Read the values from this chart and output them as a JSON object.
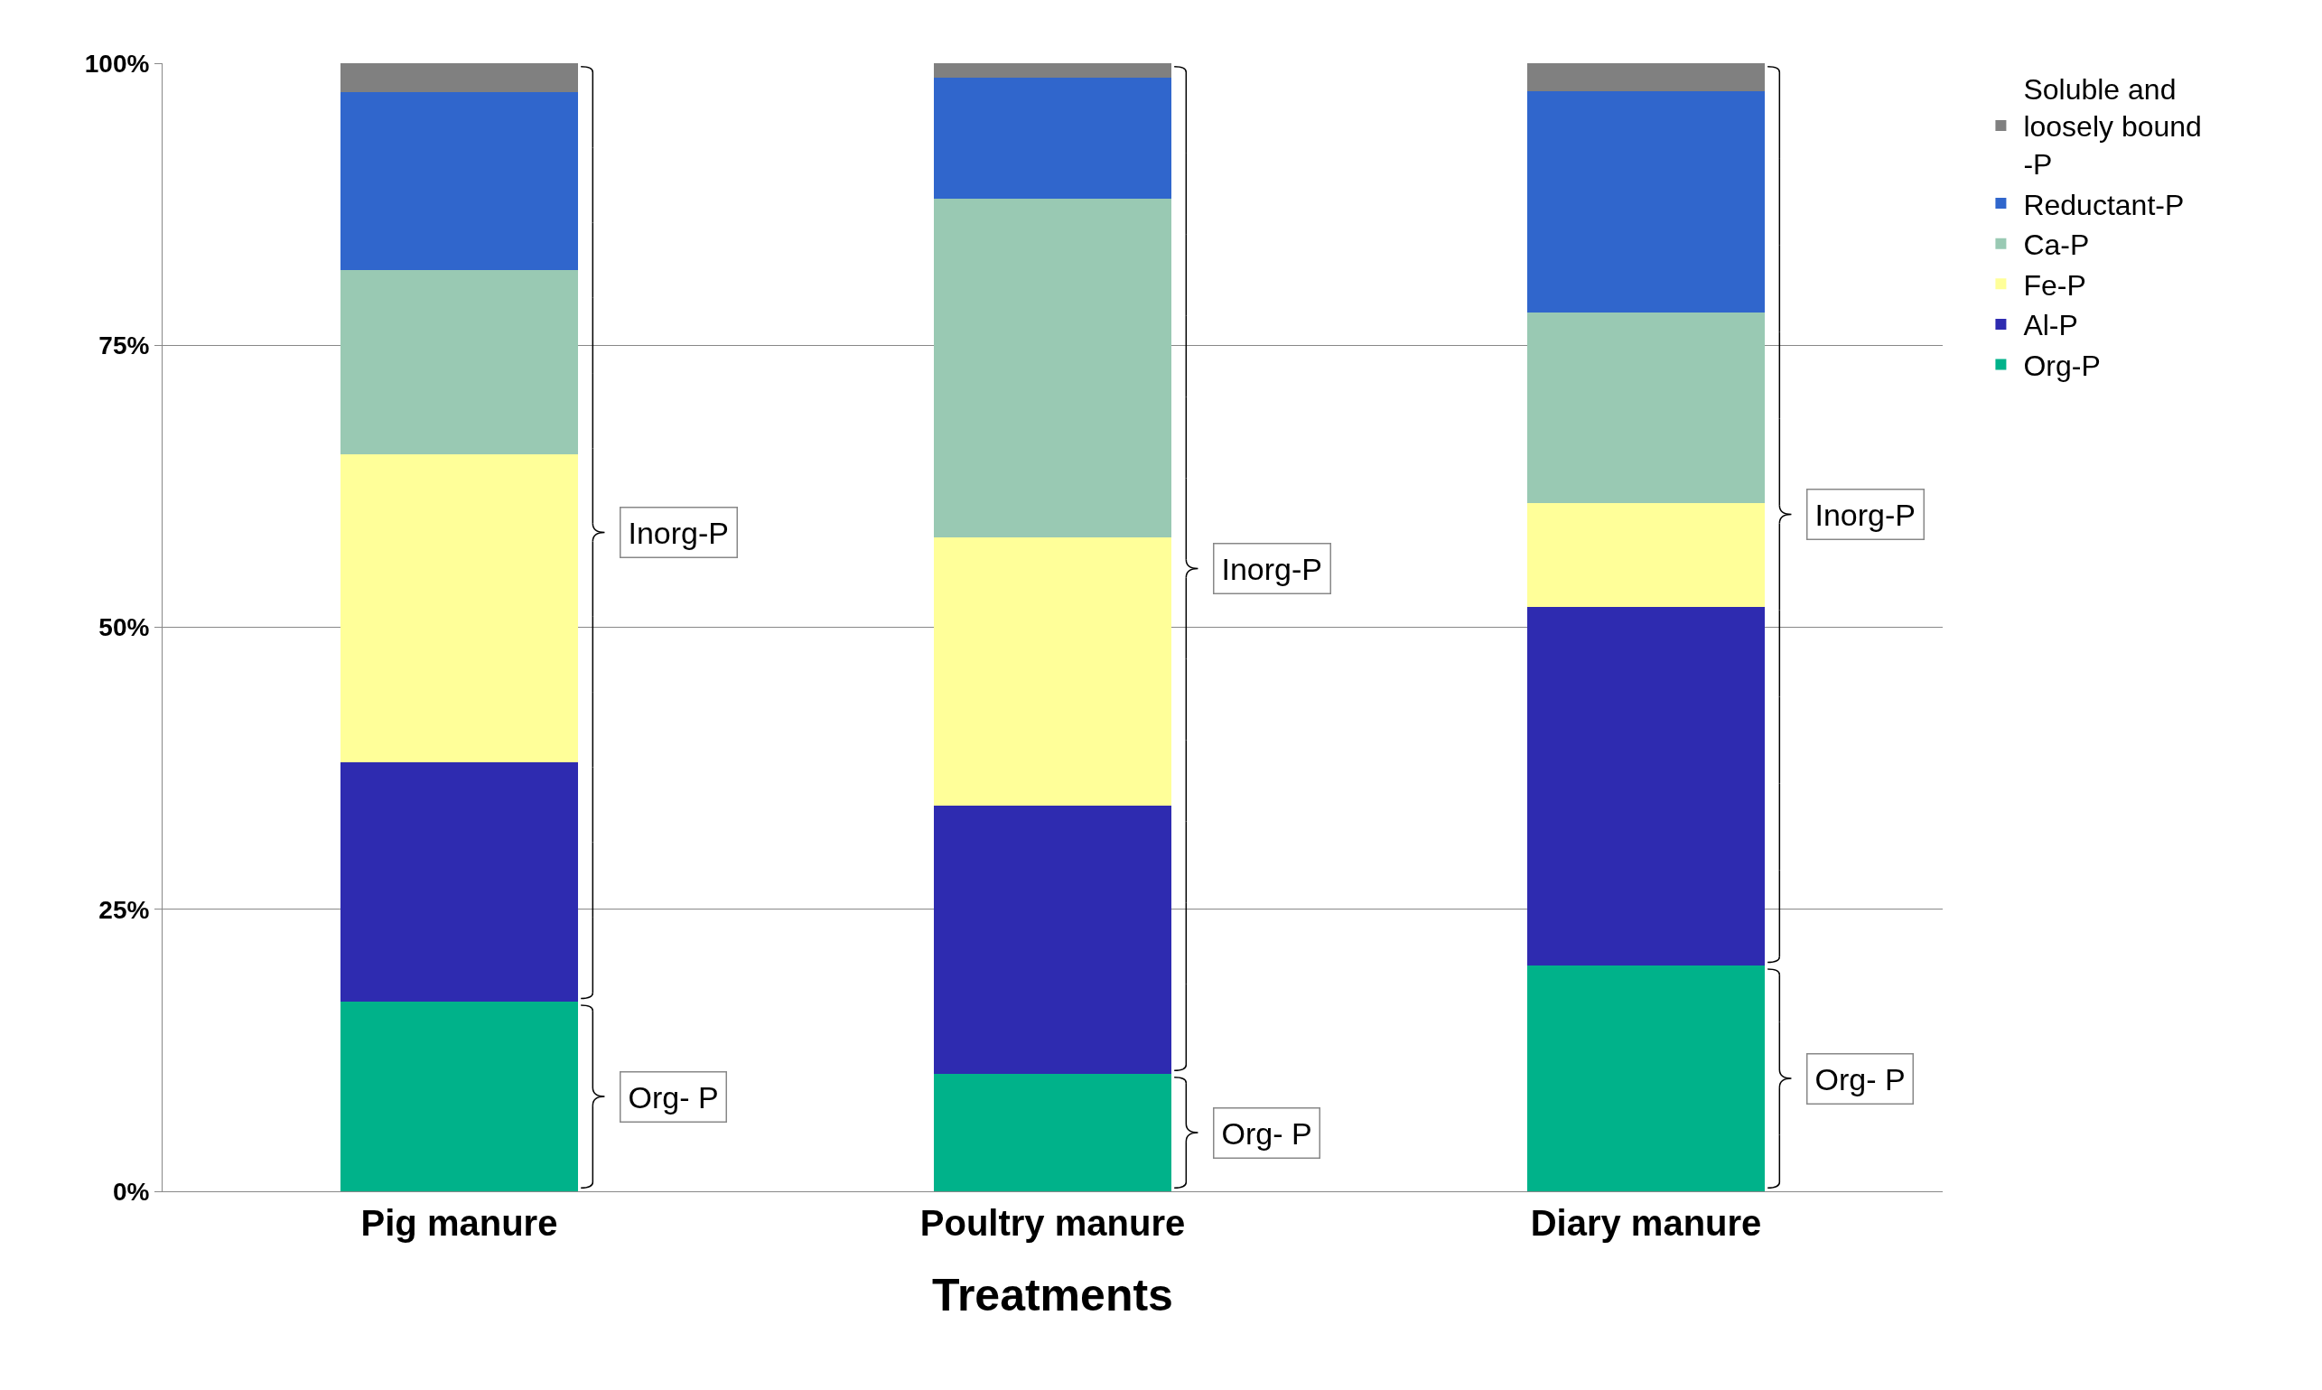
{
  "chart_data": {
    "type": "bar",
    "stacked": true,
    "xlabel": "Treatments",
    "categories": [
      "Pig manure",
      "Poultry manure",
      "Diary manure"
    ],
    "series": [
      {
        "name": "Org-P",
        "color": "#00b28a",
        "values": [
          16.8,
          10.4,
          20.0
        ]
      },
      {
        "name": "Al-P",
        "color": "#2e2bb0",
        "values": [
          21.2,
          23.8,
          31.8
        ]
      },
      {
        "name": "Fe-P",
        "color": "#ffff99",
        "values": [
          27.3,
          23.8,
          9.2
        ]
      },
      {
        "name": "Ca-P",
        "color": "#99c9b3",
        "values": [
          16.4,
          30.0,
          16.9
        ]
      },
      {
        "name": "Reductant-P",
        "color": "#3066cc",
        "values": [
          15.7,
          10.7,
          19.6
        ]
      },
      {
        "name": "Soluble and loosely bound -P",
        "color": "#808080",
        "values": [
          2.6,
          1.3,
          2.5
        ]
      }
    ],
    "ylim": [
      0,
      100
    ],
    "yticks": [
      {
        "value": 0,
        "label": "0%"
      },
      {
        "value": 25,
        "label": "25%"
      },
      {
        "value": 50,
        "label": "50%"
      },
      {
        "value": 75,
        "label": "75%"
      },
      {
        "value": 100,
        "label": "100%"
      }
    ],
    "grid": "y",
    "legend": "right",
    "annotations": [
      "Inorg-P",
      "Org- P",
      "Inorg-P",
      "Org- P",
      "Inorg-P",
      "Org- P"
    ]
  }
}
